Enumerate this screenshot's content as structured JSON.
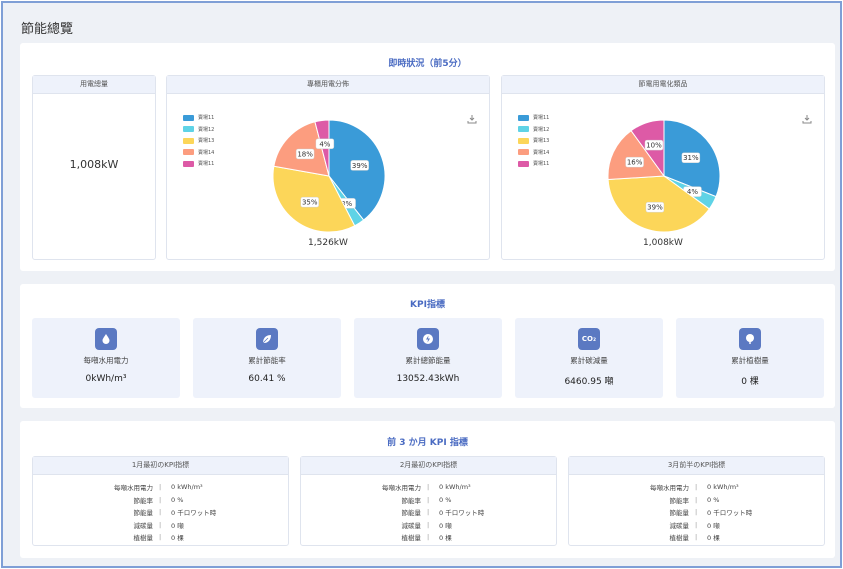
{
  "page": {
    "title": "節能總覽"
  },
  "realtime": {
    "title": "即時狀況（前5分）",
    "usage_card": {
      "header": "用電總量",
      "value": "1,008kW"
    },
    "pie1": {
      "header": "專櫃用電分佈",
      "total": "1,526kW",
      "legend": [
        "賣場11",
        "賣場12",
        "賣場13",
        "賣場14",
        "賣場11"
      ],
      "labels": [
        "39%",
        "3%",
        "35%",
        "18%",
        "4%"
      ]
    },
    "pie2": {
      "header": "節電用電化類品",
      "total": "1,008kW",
      "legend": [
        "賣場11",
        "賣場12",
        "賣場13",
        "賣場14",
        "賣場11"
      ],
      "labels": [
        "31%",
        "4%",
        "39%",
        "16%",
        "10%"
      ]
    }
  },
  "chart_data": [
    {
      "type": "pie",
      "title": "專櫃用電分佈",
      "categories": [
        "賣場11",
        "賣場12",
        "賣場13",
        "賣場14",
        "賣場11"
      ],
      "values": [
        39,
        3,
        35,
        18,
        4
      ],
      "colors": [
        "#3a9bd8",
        "#5fd3e6",
        "#fcd659",
        "#fc9d7f",
        "#dd5aa6"
      ],
      "legend": "top-left"
    },
    {
      "type": "pie",
      "title": "節電用電化類品",
      "categories": [
        "賣場11",
        "賣場12",
        "賣場13",
        "賣場14",
        "賣場11"
      ],
      "values": [
        31,
        4,
        39,
        16,
        10
      ],
      "colors": [
        "#3a9bd8",
        "#5fd3e6",
        "#fcd659",
        "#fc9d7f",
        "#dd5aa6"
      ],
      "legend": "top-left"
    }
  ],
  "kpi": {
    "title": "KPI指標",
    "items": [
      {
        "icon": "water-drop-icon",
        "label": "每噸水用電力",
        "value": "0kWh/m³"
      },
      {
        "icon": "leaf-icon",
        "label": "累計節能率",
        "value": "60.41 %"
      },
      {
        "icon": "lightning-icon",
        "label": "累計總節能量",
        "value": "13052.43kWh"
      },
      {
        "icon": "co2-icon",
        "label": "累計碳減量",
        "value": "6460.95 噸",
        "badge": "CO₂"
      },
      {
        "icon": "tree-icon",
        "label": "累計植樹量",
        "value": "0 棵"
      }
    ]
  },
  "three_month": {
    "title": "前 3 か月 KPI 指標",
    "row_labels": [
      "每噸水用電力",
      "節能率",
      "節能量",
      "減碳量",
      "植樹量"
    ],
    "cards": [
      {
        "header": "1月最初のKPI指標",
        "values": [
          "0 kWh/m³",
          "0 %",
          "0 千ロワット時",
          "0 噸",
          "0 棵"
        ]
      },
      {
        "header": "2月最初のKPI指標",
        "values": [
          "0 kWh/m³",
          "0 %",
          "0 千ロワット時",
          "0 噸",
          "0 棵"
        ]
      },
      {
        "header": "3月前半のKPI指標",
        "values": [
          "0 kWh/m³",
          "0 %",
          "0 千ロワット時",
          "0 噸",
          "0 棵"
        ]
      }
    ]
  }
}
